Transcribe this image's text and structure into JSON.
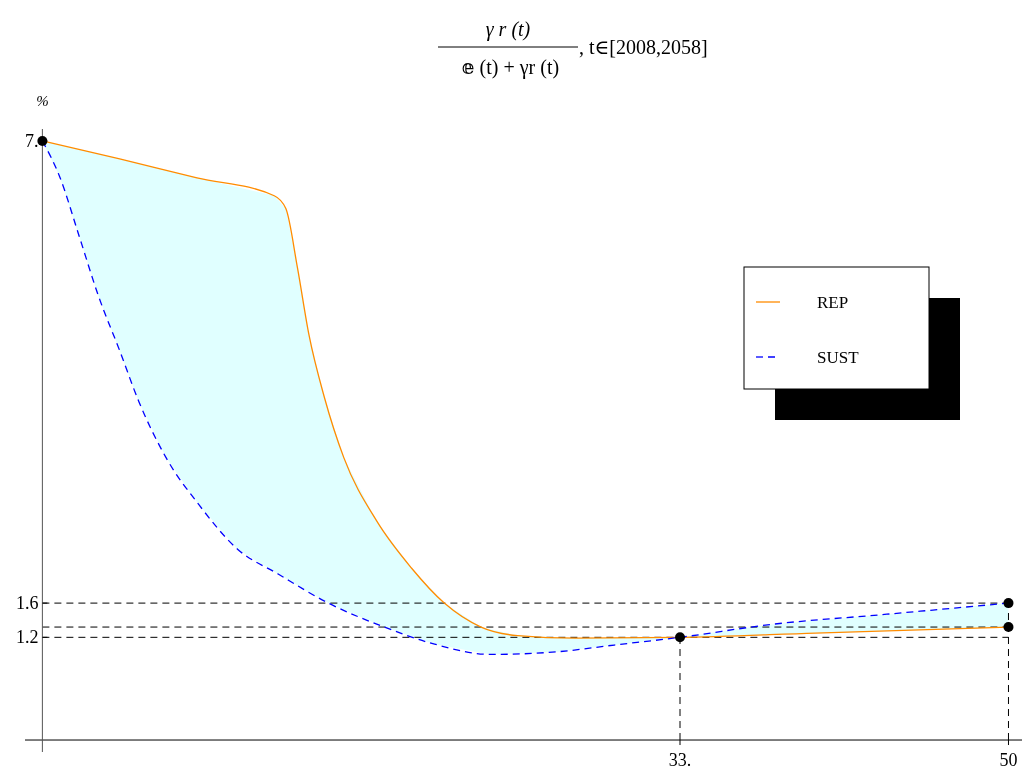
{
  "chart_data": {
    "type": "line",
    "title": "γ r (t) 𝕖 (t) + γr (t), t∈[2008,2058]",
    "ylabel": "%",
    "xlim": [
      -0.9,
      50.7
    ],
    "ylim": [
      -0.14,
      7.14
    ],
    "xticks": [
      {
        "value": 33,
        "label": "33."
      },
      50
    ],
    "yticks": [
      1.2,
      1.6,
      {
        "value": 7,
        "label": "7."
      }
    ],
    "legend": "right",
    "series": [
      {
        "name": "REP",
        "color": "#ff8c00",
        "line_style": "solid",
        "x": [
          0,
          4,
          8,
          12,
          12.6,
          13.2,
          13.8,
          14.6,
          15.6,
          17.3,
          19.1,
          20.8,
          22.7,
          24.6,
          27.6,
          33,
          40,
          50
        ],
        "values": [
          7,
          6.79,
          6.57,
          6.36,
          6.21,
          5.52,
          4.73,
          4.0,
          3.3,
          2.56,
          2.01,
          1.6,
          1.32,
          1.22,
          1.19,
          1.2,
          1.25,
          1.32
        ]
      },
      {
        "name": "SUST",
        "color": "#0000ff",
        "line_style": "dashed",
        "x": [
          0,
          0.9,
          1.9,
          2.9,
          4,
          5,
          6.4,
          8.1,
          10.1,
          12.2,
          14.8,
          17.7,
          20.3,
          23.2,
          26.6,
          29.6,
          33,
          37.7,
          43.7,
          50
        ],
        "values": [
          7,
          6.58,
          5.89,
          5.19,
          4.55,
          3.95,
          3.3,
          2.75,
          2.23,
          1.94,
          1.6,
          1.32,
          1.12,
          1.0,
          1.03,
          1.11,
          1.2,
          1.35,
          1.47,
          1.6
        ]
      },
      {
        "type": "scatter",
        "color": "#000000",
        "marker": "circle",
        "x": [
          0,
          33,
          50,
          50
        ],
        "values": [
          7,
          1.2,
          1.6,
          1.32
        ]
      }
    ],
    "ref_lines": [
      {
        "axis": "y",
        "value": 1.6,
        "line_style": "dashed",
        "color": "#000000"
      },
      {
        "axis": "y",
        "value": 1.32,
        "line_style": "dashed",
        "color": "#000000"
      },
      {
        "axis": "y",
        "value": 1.2,
        "line_style": "dashed",
        "color": "#000000"
      },
      {
        "axis": "x",
        "value": 33,
        "line_style": "dashed",
        "color": "#000000"
      },
      {
        "axis": "x",
        "value": 50,
        "line_style": "dashed",
        "color": "#000000"
      }
    ]
  }
}
